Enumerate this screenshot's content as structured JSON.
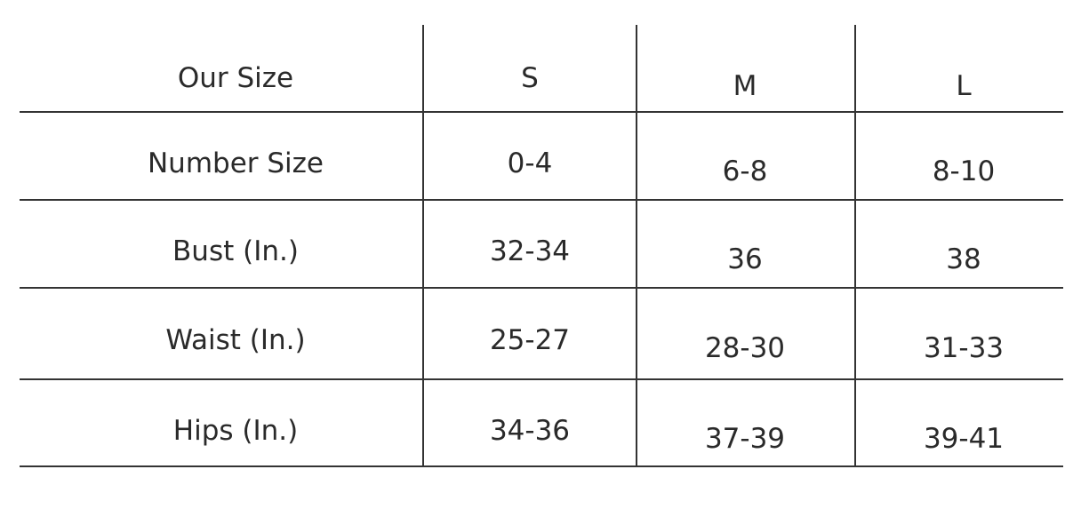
{
  "table": {
    "headers": [
      "Our Size",
      "S",
      "M",
      "L"
    ],
    "rows": [
      [
        "Number Size",
        "0-4",
        "6-8",
        "8-10"
      ],
      [
        "Bust (In.)",
        "32-34",
        "36",
        "38"
      ],
      [
        "Waist (In.)",
        "25-27",
        "28-30",
        "31-33"
      ],
      [
        "Hips (In.)",
        "34-36",
        "37-39",
        "39-41"
      ]
    ]
  }
}
